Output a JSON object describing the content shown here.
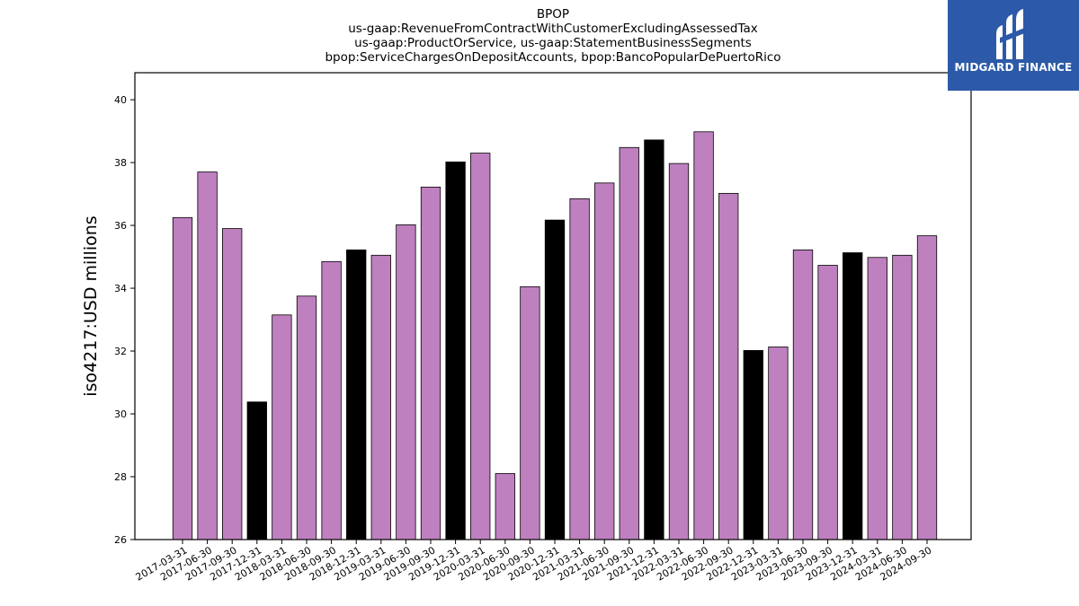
{
  "chart_data": {
    "type": "bar",
    "title_lines": [
      "BPOP",
      "us-gaap:RevenueFromContractWithCustomerExcludingAssessedTax",
      "us-gaap:ProductOrService, us-gaap:StatementBusinessSegments",
      "bpop:ServiceChargesOnDepositAccounts, bpop:BancoPopularDePuertoRico"
    ],
    "ylabel": "iso4217:USD  millions",
    "xlabel": "",
    "ylim": [
      26,
      40.86
    ],
    "yticks": [
      26,
      28,
      30,
      32,
      34,
      36,
      38,
      40
    ],
    "grid": false,
    "categories": [
      "2017-03-31",
      "2017-06-30",
      "2017-09-30",
      "2017-12-31",
      "2018-03-31",
      "2018-06-30",
      "2018-09-30",
      "2018-12-31",
      "2019-03-31",
      "2019-06-30",
      "2019-09-30",
      "2019-12-31",
      "2020-03-31",
      "2020-06-30",
      "2020-09-30",
      "2020-12-31",
      "2021-03-31",
      "2021-06-30",
      "2021-09-30",
      "2021-12-31",
      "2022-03-31",
      "2022-06-30",
      "2022-09-30",
      "2022-12-31",
      "2023-03-31",
      "2023-06-30",
      "2023-09-30",
      "2023-12-31",
      "2024-03-31",
      "2024-06-30",
      "2024-09-30"
    ],
    "values": [
      36.25,
      37.7,
      35.9,
      30.38,
      33.15,
      33.75,
      34.85,
      35.22,
      35.05,
      36.02,
      37.22,
      38.02,
      38.3,
      28.1,
      34.05,
      36.17,
      36.85,
      37.35,
      38.48,
      38.72,
      37.97,
      38.98,
      37.02,
      32.02,
      32.13,
      35.22,
      34.73,
      35.13,
      34.98,
      35.05,
      35.67
    ],
    "quarter_end_color": "#000000",
    "bar_color": "#bf80bf",
    "edge_color": "#000000"
  },
  "logo": {
    "text": "MIDGARD FINANCE"
  }
}
